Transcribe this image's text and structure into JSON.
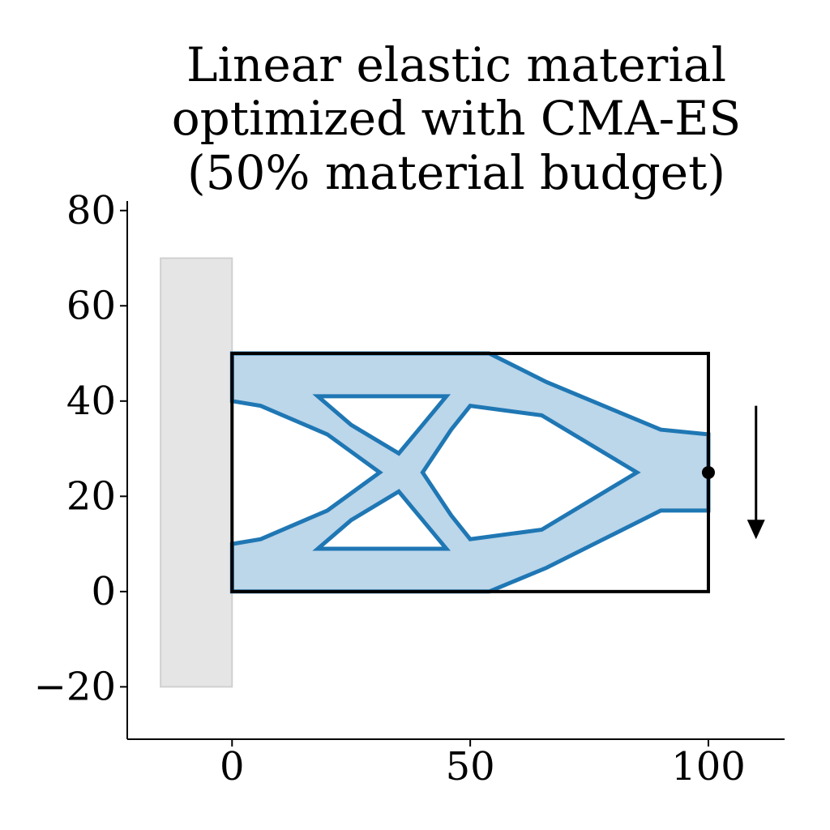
{
  "chart_data": {
    "type": "diagram",
    "title_lines": [
      "Linear elastic material",
      "optimized with CMA-ES",
      "(50% material budget)"
    ],
    "xlim": [
      -22,
      116
    ],
    "ylim": [
      -31,
      82
    ],
    "x_ticks": [
      {
        "value": 0,
        "label": "0"
      },
      {
        "value": 50,
        "label": "50"
      },
      {
        "value": 100,
        "label": "100"
      }
    ],
    "y_ticks": [
      {
        "value": -20,
        "label": "−20"
      },
      {
        "value": 0,
        "label": "0"
      },
      {
        "value": 20,
        "label": "20"
      },
      {
        "value": 40,
        "label": "40"
      },
      {
        "value": 60,
        "label": "60"
      },
      {
        "value": 80,
        "label": "80"
      }
    ],
    "wall": {
      "x0": -15,
      "x1": 0,
      "y0": -20,
      "y1": 70,
      "fill": "#e5e5e5",
      "stroke": "#d0d0d0"
    },
    "domain": {
      "x0": 0,
      "x1": 100,
      "y0": 0,
      "y1": 50,
      "stroke": "#000000"
    },
    "material": {
      "fill": "#bcd6ea",
      "edge": "#1f77b4",
      "outer": [
        [
          0,
          50
        ],
        [
          54,
          50
        ],
        [
          66,
          44
        ],
        [
          78,
          39
        ],
        [
          90,
          34
        ],
        [
          100,
          33
        ],
        [
          100,
          17
        ],
        [
          90,
          17
        ],
        [
          78,
          11
        ],
        [
          66,
          5
        ],
        [
          54,
          0
        ],
        [
          0,
          0
        ],
        [
          0,
          10
        ],
        [
          6,
          11
        ],
        [
          20,
          17
        ],
        [
          31,
          25
        ],
        [
          20,
          33
        ],
        [
          6,
          39
        ],
        [
          0,
          40
        ]
      ],
      "holes": [
        [
          [
            18,
            41
          ],
          [
            45,
            41
          ],
          [
            40,
            35
          ],
          [
            35,
            29
          ],
          [
            25,
            35
          ]
        ],
        [
          [
            18,
            9
          ],
          [
            45,
            9
          ],
          [
            40,
            15
          ],
          [
            35,
            21
          ],
          [
            25,
            15
          ]
        ],
        [
          [
            40,
            25
          ],
          [
            46,
            34
          ],
          [
            50,
            39
          ],
          [
            65,
            37
          ],
          [
            85,
            25
          ],
          [
            65,
            13
          ],
          [
            50,
            11
          ],
          [
            46,
            16
          ]
        ]
      ]
    },
    "load_point": {
      "x": 100,
      "y": 25
    },
    "load_arrow": {
      "x": 110,
      "y_start": 39,
      "y_end": 11
    }
  }
}
